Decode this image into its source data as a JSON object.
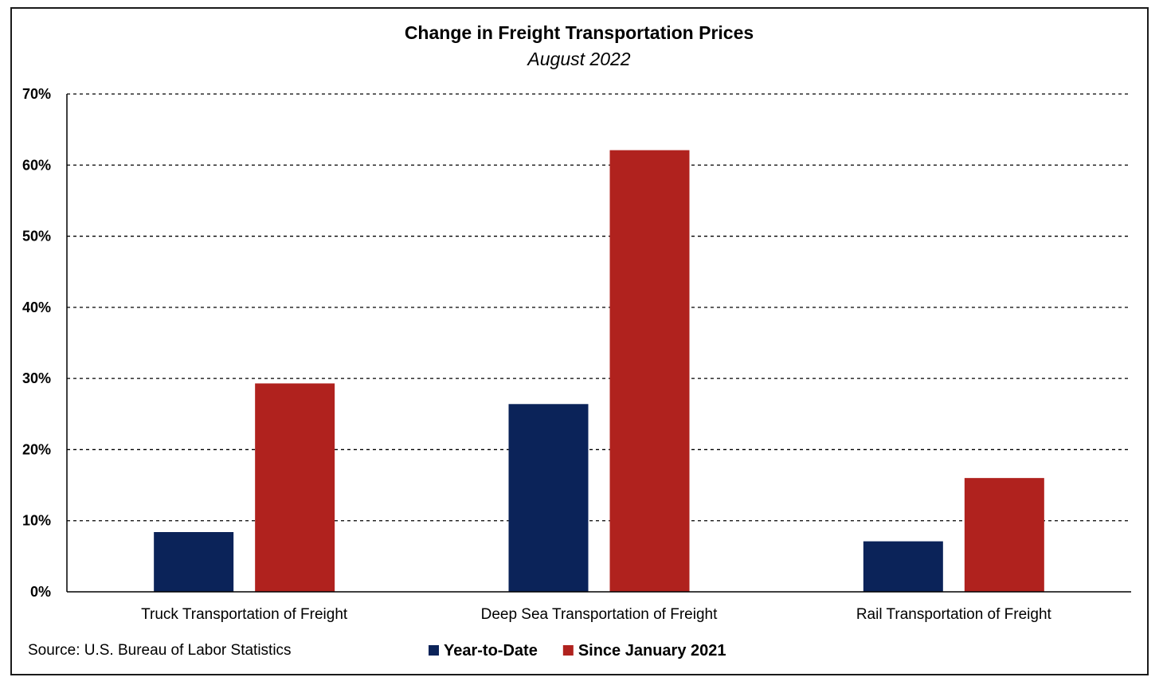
{
  "chart_data": {
    "type": "bar",
    "title": "Change in Freight Transportation Prices",
    "subtitle": "August 2022",
    "categories": [
      "Truck Transportation of Freight",
      "Deep Sea Transportation of Freight",
      "Rail Transportation of Freight"
    ],
    "series": [
      {
        "name": "Year-to-Date",
        "color": "#0b2359",
        "values": [
          8.4,
          26.4,
          7.1
        ]
      },
      {
        "name": "Since January 2021",
        "color": "#b0221e",
        "values": [
          29.3,
          62.1,
          16.0
        ]
      }
    ],
    "ylim": [
      0,
      70
    ],
    "yticks": [
      0,
      10,
      20,
      30,
      40,
      50,
      60,
      70
    ],
    "ytick_labels": [
      "0%",
      "10%",
      "20%",
      "30%",
      "40%",
      "50%",
      "60%",
      "70%"
    ],
    "grid": true,
    "legend_position": "bottom",
    "source": "Source: U.S. Bureau of Labor Statistics"
  }
}
